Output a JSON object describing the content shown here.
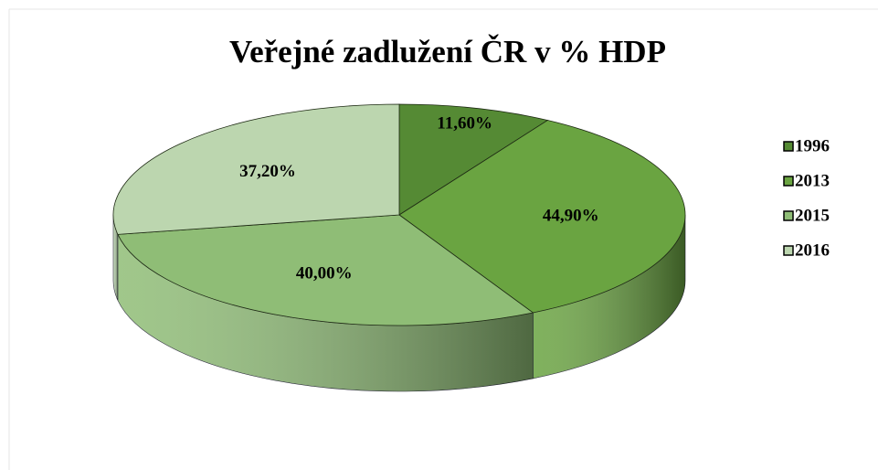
{
  "chart_data": {
    "type": "pie",
    "title": "Veřejné zadlužení ČR v % HDP",
    "categories": [
      "1996",
      "2013",
      "2015",
      "2016"
    ],
    "values": [
      11.6,
      44.9,
      40.0,
      37.2
    ],
    "value_labels": [
      "11,60%",
      "44,90%",
      "40,00%",
      "37,20%"
    ],
    "colors": [
      "#558a34",
      "#6aa441",
      "#8fbd76",
      "#bcd6af"
    ],
    "legend": "right"
  }
}
